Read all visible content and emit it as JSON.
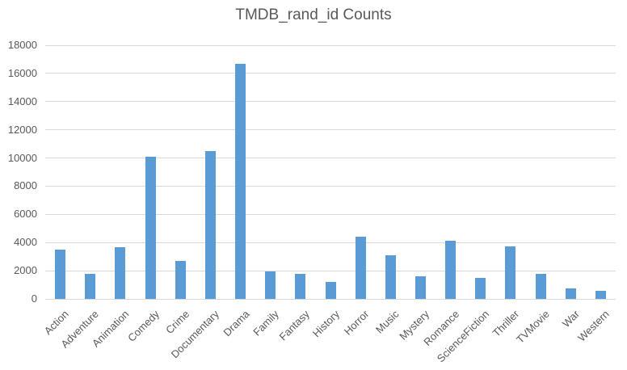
{
  "title": "TMDB_rand_id Counts",
  "colors": {
    "bar": "#5b9bd5",
    "gridline": "#d9d9d9",
    "title_text": "#595959",
    "axis_text": "#595959",
    "background": "#ffffff"
  },
  "chart_data": {
    "type": "bar",
    "title": "TMDB_rand_id Counts",
    "categories": [
      "Action",
      "Adventure",
      "Animation",
      "Comedy",
      "Crime",
      "Documentary",
      "Drama",
      "Family",
      "Fantasy",
      "History",
      "Horror",
      "Music",
      "Mystery",
      "Romance",
      "ScienceFiction",
      "Thriller",
      "TVMovie",
      "War",
      "Western"
    ],
    "values": [
      3500,
      1800,
      3650,
      10100,
      2700,
      10500,
      16700,
      1950,
      1750,
      1200,
      4400,
      3100,
      1600,
      4100,
      1500,
      3750,
      1800,
      750,
      600
    ],
    "xlabel": "",
    "ylabel": "",
    "ylim": [
      0,
      18000
    ],
    "yticks": [
      0,
      2000,
      4000,
      6000,
      8000,
      10000,
      12000,
      14000,
      16000,
      18000
    ],
    "grid": true,
    "legend": false,
    "x_label_rotation_deg": 45
  }
}
